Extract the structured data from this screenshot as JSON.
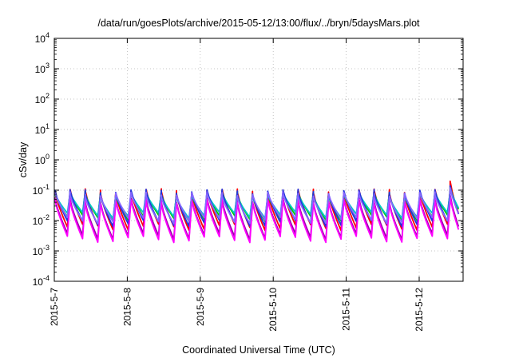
{
  "chart_data": {
    "type": "line",
    "title": "/data/run/goesPlots/archive/2015-05-12/13:00/flux/../bryn/5daysMars.plot",
    "xlabel": "Coordinated Universal Time (UTC)",
    "ylabel": "cSv/day",
    "yscale": "log",
    "ylim": [
      0.0001,
      10000
    ],
    "xlim": [
      "2015-05-07",
      "2015-05-12T13:00"
    ],
    "x_ticks": [
      "2015-5-7",
      "2015-5-8",
      "2015-5-9",
      "2015-5-10",
      "2015-5-11",
      "2015-5-12"
    ],
    "y_ticks": [
      {
        "base": "10",
        "exp": "-4"
      },
      {
        "base": "10",
        "exp": "-3"
      },
      {
        "base": "10",
        "exp": "-2"
      },
      {
        "base": "10",
        "exp": "-1"
      },
      {
        "base": "10",
        "exp": "0"
      },
      {
        "base": "10",
        "exp": "1"
      },
      {
        "base": "10",
        "exp": "2"
      },
      {
        "base": "10",
        "exp": "3"
      },
      {
        "base": "10",
        "exp": "4"
      }
    ],
    "grid": true,
    "series_pattern": {
      "period_hours": 5,
      "phase_hours": 0.2,
      "envelope_amplitude_days": 0.5,
      "envelope_period_days": 1.0,
      "event_start": "2015-05-12T06:00"
    },
    "series": [
      {
        "color": "#ff0000",
        "peak": 0.088,
        "trough": 0.006,
        "event_peak": 0.2
      },
      {
        "color": "#00cc00",
        "peak": 0.075,
        "trough": 0.012,
        "event_peak": 0.13
      },
      {
        "color": "#00c8c8",
        "peak": 0.07,
        "trough": 0.015,
        "event_peak": 0.12
      },
      {
        "color": "#2233dd",
        "peak": 0.085,
        "trough": 0.008,
        "event_peak": 0.14
      },
      {
        "color": "#9900aa",
        "peak": 0.045,
        "trough": 0.003,
        "event_peak": 0.07
      },
      {
        "color": "#ff00ff",
        "peak": 0.04,
        "trough": 0.0024,
        "event_peak": 0.06
      },
      {
        "color": "#8866ff",
        "peak": 0.07,
        "trough": 0.01,
        "event_peak": 0.12
      }
    ]
  }
}
